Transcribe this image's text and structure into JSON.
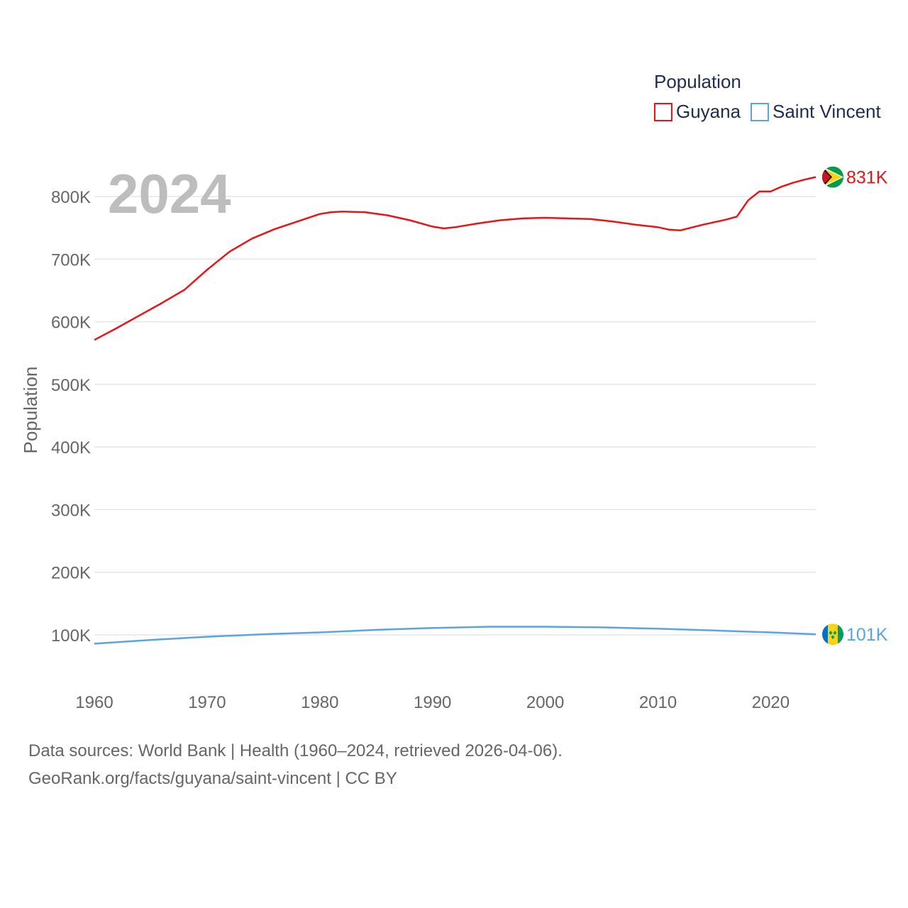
{
  "chart_data": {
    "type": "line",
    "title": "Population",
    "year_label": "2024",
    "ylabel": "Population",
    "xlabel": "",
    "xlim": [
      1960,
      2024
    ],
    "ylim": [
      0,
      850000
    ],
    "x_ticks": [
      1960,
      1970,
      1980,
      1990,
      2000,
      2010,
      2020
    ],
    "x_tick_labels": [
      "1960",
      "1970",
      "1980",
      "1990",
      "2000",
      "2010",
      "2020"
    ],
    "y_ticks": [
      100000,
      200000,
      300000,
      400000,
      500000,
      600000,
      700000,
      800000
    ],
    "y_tick_labels": [
      "100K",
      "200K",
      "300K",
      "400K",
      "500K",
      "600K",
      "700K",
      "800K"
    ],
    "grid": true,
    "legend_position": "top-right",
    "series": [
      {
        "name": "Guyana",
        "color": "#e8141a",
        "end_label": "831K",
        "flag_icon": "guyana-flag-icon",
        "points": [
          [
            1960,
            571000
          ],
          [
            1962,
            590000
          ],
          [
            1964,
            610000
          ],
          [
            1966,
            630000
          ],
          [
            1968,
            651000
          ],
          [
            1970,
            683000
          ],
          [
            1972,
            712000
          ],
          [
            1974,
            733000
          ],
          [
            1976,
            748000
          ],
          [
            1978,
            760000
          ],
          [
            1980,
            772000
          ],
          [
            1981,
            775000
          ],
          [
            1982,
            776000
          ],
          [
            1984,
            775000
          ],
          [
            1986,
            770000
          ],
          [
            1988,
            762000
          ],
          [
            1990,
            752000
          ],
          [
            1991,
            749000
          ],
          [
            1992,
            751000
          ],
          [
            1994,
            757000
          ],
          [
            1996,
            762000
          ],
          [
            1998,
            765000
          ],
          [
            2000,
            766000
          ],
          [
            2002,
            765000
          ],
          [
            2004,
            764000
          ],
          [
            2006,
            760000
          ],
          [
            2008,
            755000
          ],
          [
            2010,
            751000
          ],
          [
            2011,
            747000
          ],
          [
            2012,
            746000
          ],
          [
            2014,
            755000
          ],
          [
            2016,
            763000
          ],
          [
            2017,
            768000
          ],
          [
            2018,
            794000
          ],
          [
            2019,
            808000
          ],
          [
            2020,
            808000
          ],
          [
            2021,
            816000
          ],
          [
            2022,
            822000
          ],
          [
            2023,
            827000
          ],
          [
            2024,
            831000
          ]
        ]
      },
      {
        "name": "Saint Vincent",
        "color": "#5aa4e3",
        "end_label": "101K",
        "flag_icon": "saint-vincent-flag-icon",
        "points": [
          [
            1960,
            86000
          ],
          [
            1965,
            92000
          ],
          [
            1970,
            97000
          ],
          [
            1975,
            101000
          ],
          [
            1980,
            104000
          ],
          [
            1985,
            108000
          ],
          [
            1990,
            111000
          ],
          [
            1995,
            113000
          ],
          [
            2000,
            113000
          ],
          [
            2005,
            112000
          ],
          [
            2010,
            110000
          ],
          [
            2015,
            107000
          ],
          [
            2020,
            104000
          ],
          [
            2024,
            101000
          ]
        ]
      }
    ]
  },
  "legend": {
    "title": "Population",
    "items": [
      "Guyana",
      "Saint Vincent"
    ]
  },
  "footer": {
    "line1": "Data sources: World Bank | Health (1960–2024, retrieved 2026-04-06).",
    "line2": "GeoRank.org/facts/guyana/saint-vincent | CC BY"
  },
  "colors": {
    "grid": "#e6e6e6",
    "text": "#666666",
    "legend_text": "#1f2d4d",
    "year_label": "#bdbdbd"
  }
}
